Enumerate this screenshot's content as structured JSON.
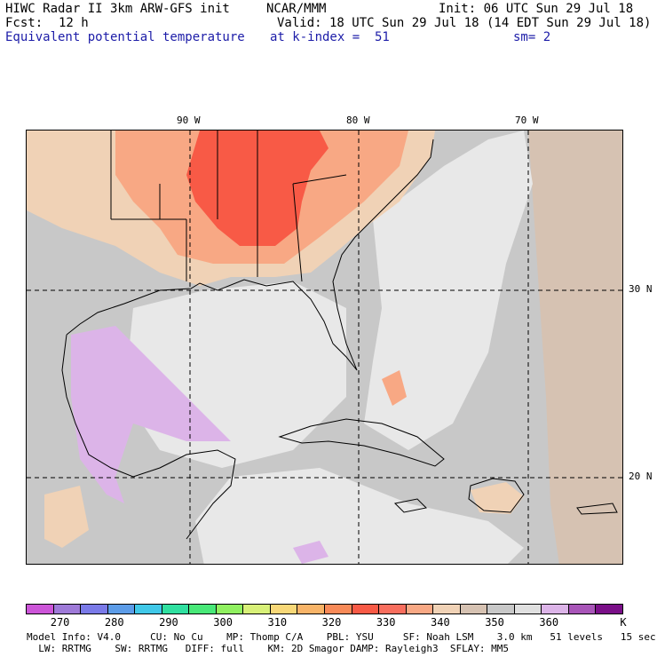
{
  "header": {
    "line1_left": "HIWC Radar II 3km ARW-GFS init",
    "line1_mid": "NCAR/MMM",
    "line1_right": "Init: 06 UTC Sun 29 Jul 18",
    "fcst_label": "Fcst:",
    "fcst_value": "12 h",
    "valid": "Valid: 18 UTC Sun 29 Jul 18 (14 EDT Sun 29 Jul 18)",
    "field_name": "Equivalent potential temperature",
    "level": "at k-index =  51",
    "smoothing": "sm= 2"
  },
  "map": {
    "lon_labels": [
      "90 W",
      "80 W",
      "70 W"
    ],
    "lat_labels": [
      "30 N",
      "20 N"
    ],
    "colors": {
      "background": "#c8c8c8",
      "light": "#e8e8e8",
      "beige": "#f0d2b6",
      "salmon": "#f8a884",
      "red_orange": "#f85a46",
      "lavender": "#dcb4e8",
      "tan": "#d6c2b2"
    }
  },
  "colorbar": {
    "unit": "K",
    "colors": [
      "#cc55d8",
      "#9e7ad8",
      "#7a7ae8",
      "#5c9ce8",
      "#40c8e8",
      "#30e0a0",
      "#48e878",
      "#90f060",
      "#d8f078",
      "#f8d878",
      "#f8b468",
      "#f88a58",
      "#f85a46",
      "#f86e5e",
      "#f8a884",
      "#f0d2b6",
      "#d6c2b2",
      "#c8c8c8",
      "#e0e0e0",
      "#dcb4e8",
      "#a855b8",
      "#7a0f88"
    ],
    "ticks": [
      "270",
      "280",
      "290",
      "300",
      "310",
      "320",
      "330",
      "340",
      "350",
      "360"
    ]
  },
  "footer": {
    "line1": "Model Info: V4.0     CU: No Cu    MP: Thomp C/A    PBL: YSU     SF: Noah LSM    3.0 km   51 levels   15 sec",
    "line2": "  LW: RRTMG    SW: RRTMG   DIFF: full    KM: 2D Smagor DAMP: Rayleigh3  SFLAY: MM5"
  }
}
